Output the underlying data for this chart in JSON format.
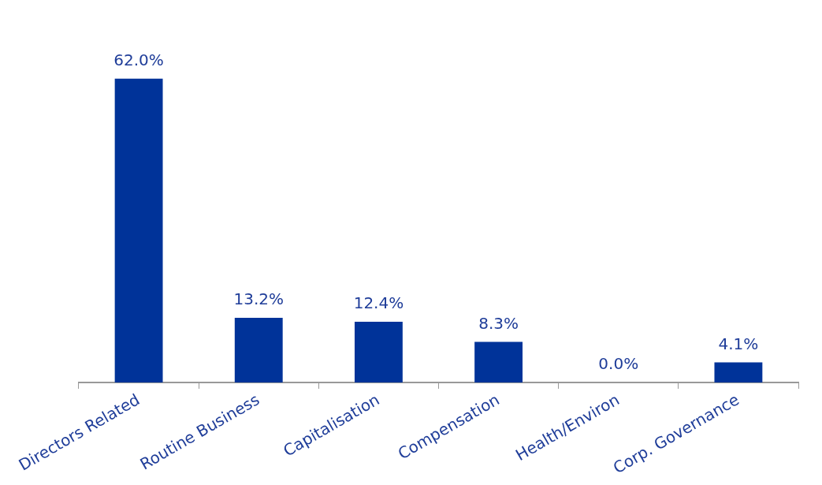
{
  "chart_data": {
    "type": "bar",
    "categories": [
      "Directors Related",
      "Routine Business",
      "Capitalisation",
      "Compensation",
      "Health/Environ",
      "Corp. Governance"
    ],
    "values": [
      62.0,
      13.2,
      12.4,
      8.3,
      0.0,
      4.1
    ],
    "value_labels": [
      "62.0%",
      "13.2%",
      "12.4%",
      "8.3%",
      "0.0%",
      "4.1%"
    ],
    "color": "#003399",
    "grid": false,
    "legend": false
  }
}
